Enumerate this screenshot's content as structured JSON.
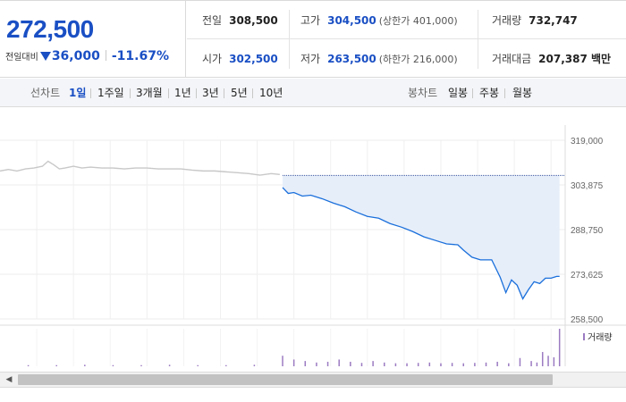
{
  "quote": {
    "price": "272,500",
    "change_label": "전일대비",
    "change_amount": "36,000",
    "change_rate": "-11.67%",
    "prev_close_label": "전일",
    "prev_close": "308,500",
    "high_label": "고가",
    "high": "304,500",
    "high_limit": "(상한가 401,000)",
    "volume_label": "거래량",
    "volume": "732,747",
    "open_label": "시가",
    "open": "302,500",
    "low_label": "저가",
    "low": "263,500",
    "low_limit": "(하한가 216,000)",
    "amount_label": "거래대금",
    "amount": "207,387 백만",
    "down_color": "#1a4fc4"
  },
  "toolbar": {
    "line_label": "선차트",
    "periods": [
      "1일",
      "1주일",
      "3개월",
      "1년",
      "3년",
      "5년",
      "10년"
    ],
    "active_period": "1일",
    "candle_label": "봉차트",
    "candles": [
      "일봉",
      "주봉",
      "월봉"
    ]
  },
  "chart_data": {
    "type": "line",
    "title": "",
    "y_ticks": [
      "319,000",
      "303,875",
      "288,750",
      "273,625",
      "258,500"
    ],
    "ylim": [
      258500,
      319000
    ],
    "xlim": [
      0,
      100
    ],
    "volume_legend": "거래량",
    "series": [
      {
        "colour": "#c8c8c8",
        "x": [
          0,
          1.5,
          3,
          4.5,
          6,
          7.5,
          8.5,
          9.5,
          10.5,
          11.5,
          13,
          14.5,
          16,
          18,
          20,
          22,
          24,
          26,
          28,
          30,
          32,
          34,
          36,
          38,
          40,
          42,
          44,
          46,
          48,
          49.5
        ],
        "values": [
          308600,
          309100,
          308600,
          309300,
          309600,
          310200,
          311900,
          310700,
          309300,
          309600,
          310200,
          309600,
          309900,
          309600,
          309600,
          309300,
          309600,
          309600,
          309300,
          309300,
          309300,
          308900,
          308600,
          308600,
          308300,
          308000,
          307700,
          307200,
          307700,
          307400
        ]
      },
      {
        "colour": "#1a6fdb",
        "fill": "#e6eefa",
        "baseline": 307100,
        "x": [
          50,
          51,
          52,
          53.5,
          55,
          57,
          59,
          61,
          63,
          65,
          67,
          69,
          71,
          73,
          75,
          77,
          79,
          81,
          82,
          83.5,
          85,
          87,
          88.5,
          89.5,
          90.5,
          91.5,
          92.5,
          93.5,
          94.5,
          95.5,
          96.5,
          97.5,
          98.5,
          99
        ],
        "values": [
          303000,
          301000,
          301300,
          300100,
          300400,
          299200,
          297700,
          296500,
          294700,
          293200,
          292600,
          290800,
          289600,
          288100,
          286300,
          285100,
          283900,
          283600,
          281800,
          279400,
          278500,
          278500,
          272600,
          267400,
          271700,
          269900,
          265300,
          268400,
          271100,
          270500,
          272300,
          272300,
          272900,
          272900
        ]
      }
    ],
    "volume": {
      "colour": "#9b7bc2",
      "x": [
        5,
        10,
        15,
        20,
        25,
        30,
        35,
        40,
        45,
        50,
        52,
        54,
        56,
        58,
        60,
        62,
        64,
        66,
        68,
        70,
        72,
        74,
        76,
        78,
        80,
        82,
        84,
        86,
        88,
        90,
        92,
        94,
        95,
        96,
        97,
        98,
        99
      ],
      "values": [
        3,
        3,
        4,
        3,
        3,
        4,
        3,
        3,
        4,
        28,
        18,
        14,
        10,
        12,
        18,
        12,
        9,
        14,
        10,
        8,
        8,
        9,
        10,
        8,
        9,
        8,
        9,
        10,
        12,
        8,
        22,
        14,
        10,
        38,
        28,
        24,
        100
      ]
    }
  }
}
